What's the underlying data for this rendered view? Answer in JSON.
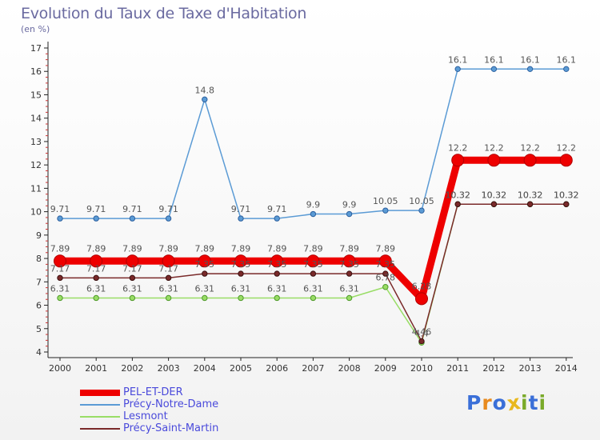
{
  "header": {
    "title": "Evolution du Taux de Taxe d'Habitation",
    "subtitle": "(en %)"
  },
  "brand": {
    "text": "Proxiti",
    "letters": [
      "P",
      "r",
      "o",
      "x",
      "i",
      "t",
      "i"
    ],
    "colors": [
      "#3a6fd8",
      "#e88a1e",
      "#3a6fd8",
      "#e8b81e",
      "#7aaa2a",
      "#3a6fd8",
      "#7aaa2a"
    ]
  },
  "chart_data": {
    "type": "line",
    "categories": [
      "2000",
      "2001",
      "2002",
      "2003",
      "2004",
      "2005",
      "2006",
      "2007",
      "2008",
      "2009",
      "2010",
      "2011",
      "2012",
      "2013",
      "2014"
    ],
    "y_ticks": [
      "4",
      "5",
      "6",
      "7",
      "8",
      "9",
      "10",
      "11",
      "12",
      "13",
      "14",
      "15",
      "16",
      "17"
    ],
    "ylim": [
      4,
      17
    ],
    "grid": false,
    "legend_position": "bottom-left",
    "series": [
      {
        "name": "PEL-ET-DER",
        "color": "#ee0000",
        "values": [
          7.89,
          7.89,
          7.89,
          7.89,
          7.89,
          7.89,
          7.89,
          7.89,
          7.89,
          7.89,
          6.28,
          12.2,
          12.2,
          12.2,
          12.2
        ],
        "labels": [
          "7.89",
          "7.89",
          "7.89",
          "7.89",
          "7.89",
          "7.89",
          "7.89",
          "7.89",
          "7.89",
          "7.89",
          "6.28",
          "12.2",
          "12.2",
          "12.2",
          "12.2"
        ]
      },
      {
        "name": "Précy-Notre-Dame",
        "color": "#5b9bd5",
        "values": [
          9.71,
          9.71,
          9.71,
          9.71,
          14.8,
          9.71,
          9.71,
          9.9,
          9.9,
          10.05,
          10.05,
          16.1,
          16.1,
          16.1,
          16.1
        ],
        "labels": [
          "9.71",
          "9.71",
          "9.71",
          "9.71",
          "14.8",
          "9.71",
          "9.71",
          "9.9",
          "9.9",
          "10.05",
          "10.05",
          "16.1",
          "16.1",
          "16.1",
          "16.1"
        ]
      },
      {
        "name": "Lesmont",
        "color": "#99dd66",
        "values": [
          6.31,
          6.31,
          6.31,
          6.31,
          6.31,
          6.31,
          6.31,
          6.31,
          6.31,
          6.78,
          4.4,
          10.32,
          10.32,
          10.32,
          10.32
        ],
        "labels": [
          "6.31",
          "6.31",
          "6.31",
          "6.31",
          "6.31",
          "6.31",
          "6.31",
          "6.31",
          "6.31",
          "6.78",
          "4.4",
          "10.32",
          "10.32",
          "10.32",
          "10.32"
        ]
      },
      {
        "name": "Précy-Saint-Martin",
        "color": "#7a2a2a",
        "values": [
          7.17,
          7.17,
          7.17,
          7.17,
          7.35,
          7.35,
          7.35,
          7.35,
          7.35,
          7.35,
          4.46,
          10.32,
          10.32,
          10.32,
          10.32
        ],
        "labels": [
          "7.17",
          "7.17",
          "7.17",
          "7.17",
          "7.35",
          "7.35",
          "7.35",
          "7.35",
          "7.35",
          "7.35",
          "4.46",
          "10.32",
          "10.32",
          "10.32",
          "10.32"
        ]
      }
    ]
  }
}
